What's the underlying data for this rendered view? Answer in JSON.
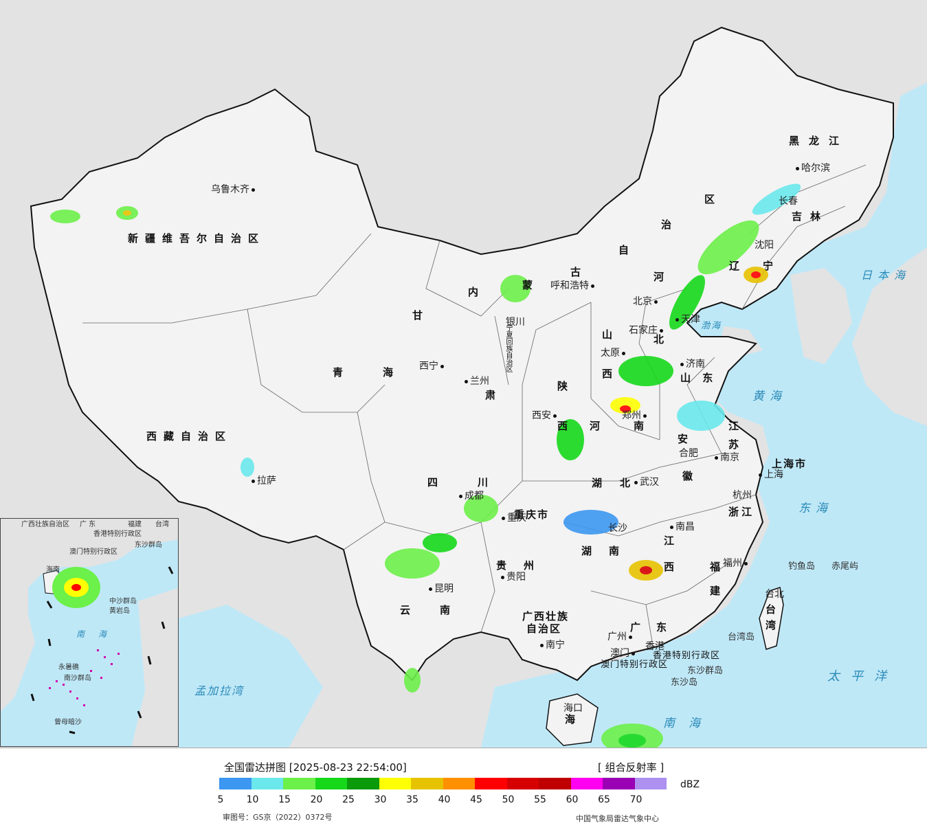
{
  "map": {
    "region_labels": [
      {
        "id": "xinjiang",
        "text": "新疆维吾尔自治区"
      },
      {
        "id": "xizang",
        "text": "西藏自治区"
      },
      {
        "id": "qinghai1",
        "text": "青"
      },
      {
        "id": "qinghai2",
        "text": "海"
      },
      {
        "id": "gansu",
        "text": "甘"
      },
      {
        "id": "sichuan1",
        "text": "四"
      },
      {
        "id": "sichuan2",
        "text": "川"
      },
      {
        "id": "yunnan1",
        "text": "云"
      },
      {
        "id": "yunnan2",
        "text": "南"
      },
      {
        "id": "guizhou1",
        "text": "贵"
      },
      {
        "id": "guizhou2",
        "text": "州"
      },
      {
        "id": "guangxi",
        "text": "广西壮族"
      },
      {
        "id": "guangxi2",
        "text": "自治区"
      },
      {
        "id": "guangdong1",
        "text": "广"
      },
      {
        "id": "guangdong2",
        "text": "东"
      },
      {
        "id": "hunan1",
        "text": "湖"
      },
      {
        "id": "hunan2",
        "text": "南"
      },
      {
        "id": "hubei1",
        "text": "湖"
      },
      {
        "id": "hubei2",
        "text": "北"
      },
      {
        "id": "henan1",
        "text": "河"
      },
      {
        "id": "henan2",
        "text": "南"
      },
      {
        "id": "shaanxi1",
        "text": "陕"
      },
      {
        "id": "shaanxi2",
        "text": "西"
      },
      {
        "id": "shanxi1",
        "text": "山"
      },
      {
        "id": "shanxi2",
        "text": "西"
      },
      {
        "id": "shandong",
        "text": "山 东"
      },
      {
        "id": "jiangsu1",
        "text": "江"
      },
      {
        "id": "jiangsu2",
        "text": "苏"
      },
      {
        "id": "anhui1",
        "text": "安"
      },
      {
        "id": "anhui2",
        "text": "徽"
      },
      {
        "id": "zhejiang",
        "text": "浙江"
      },
      {
        "id": "jiangxi1",
        "text": "江"
      },
      {
        "id": "jiangxi2",
        "text": "西"
      },
      {
        "id": "fujian1",
        "text": "福"
      },
      {
        "id": "fujian2",
        "text": "建"
      },
      {
        "id": "hebei1",
        "text": "河"
      },
      {
        "id": "hebei2",
        "text": "北"
      },
      {
        "id": "neimeng1",
        "text": "内"
      },
      {
        "id": "neimeng2",
        "text": "蒙"
      },
      {
        "id": "neimeng3",
        "text": "古"
      },
      {
        "id": "neimeng4",
        "text": "自"
      },
      {
        "id": "neimeng5",
        "text": "治"
      },
      {
        "id": "neimeng6",
        "text": "区"
      },
      {
        "id": "heilongjiang",
        "text": "黑龙江"
      },
      {
        "id": "jilin",
        "text": "吉林"
      },
      {
        "id": "liaoning1",
        "text": "辽"
      },
      {
        "id": "liaoning2",
        "text": "宁"
      },
      {
        "id": "chongqing",
        "text": "重庆市"
      },
      {
        "id": "shanghai",
        "text": "上海市"
      },
      {
        "id": "taiwan1",
        "text": "台"
      },
      {
        "id": "taiwan2",
        "text": "湾"
      },
      {
        "id": "ningxia",
        "text": "宁夏回族自治区"
      },
      {
        "id": "gansu2",
        "text": "肃"
      },
      {
        "id": "hk",
        "text": "香港特别行政区"
      },
      {
        "id": "macau",
        "text": "澳门特别行政区"
      },
      {
        "id": "hainan",
        "text": "海"
      }
    ],
    "cities": [
      {
        "id": "urumqi",
        "text": "乌鲁木齐"
      },
      {
        "id": "lhasa",
        "text": "拉萨"
      },
      {
        "id": "xining",
        "text": "西宁"
      },
      {
        "id": "lanzhou",
        "text": "兰州"
      },
      {
        "id": "yinchuan",
        "text": "银川"
      },
      {
        "id": "hohhot",
        "text": "呼和浩特"
      },
      {
        "id": "beijing",
        "text": "北京"
      },
      {
        "id": "tianjin",
        "text": "天津"
      },
      {
        "id": "shijiazhuang",
        "text": "石家庄"
      },
      {
        "id": "taiyuan",
        "text": "太原"
      },
      {
        "id": "jinan",
        "text": "济南"
      },
      {
        "id": "xian",
        "text": "西安"
      },
      {
        "id": "zhengzhou",
        "text": "郑州"
      },
      {
        "id": "hefei",
        "text": "合肥"
      },
      {
        "id": "nanjing",
        "text": "南京"
      },
      {
        "id": "shanghaic",
        "text": "上海"
      },
      {
        "id": "hangzhou",
        "text": "杭州"
      },
      {
        "id": "wuhan",
        "text": "武汉"
      },
      {
        "id": "chengdu",
        "text": "成都"
      },
      {
        "id": "chongqingc",
        "text": "重庆"
      },
      {
        "id": "changsha",
        "text": "长沙"
      },
      {
        "id": "nanchang",
        "text": "南昌"
      },
      {
        "id": "fuzhou",
        "text": "福州"
      },
      {
        "id": "taipei",
        "text": "台北"
      },
      {
        "id": "guiyang",
        "text": "贵阳"
      },
      {
        "id": "kunming",
        "text": "昆明"
      },
      {
        "id": "nanning",
        "text": "南宁"
      },
      {
        "id": "guangzhou",
        "text": "广州"
      },
      {
        "id": "hongkong",
        "text": "香港"
      },
      {
        "id": "macauc",
        "text": "澳门"
      },
      {
        "id": "haikou",
        "text": "海口"
      },
      {
        "id": "harbin",
        "text": "哈尔滨"
      },
      {
        "id": "changchun",
        "text": "长春"
      },
      {
        "id": "shenyang",
        "text": "沈阳"
      }
    ],
    "seas": [
      {
        "id": "japan_sea",
        "text": "日本海"
      },
      {
        "id": "yellow_sea",
        "text": "黄海"
      },
      {
        "id": "east_sea",
        "text": "东海"
      },
      {
        "id": "pacific",
        "text": "太平洋"
      },
      {
        "id": "south_sea",
        "text": "南海"
      },
      {
        "id": "bohai",
        "text": "渤海"
      },
      {
        "id": "bengal",
        "text": "孟加拉湾"
      }
    ],
    "islands": [
      {
        "id": "diaoyu",
        "text": "钓鱼岛"
      },
      {
        "id": "chiwei",
        "text": "赤尾屿"
      },
      {
        "id": "taiwan_island",
        "text": "台湾岛"
      },
      {
        "id": "dongsha_islands",
        "text": "东沙群岛"
      },
      {
        "id": "dongsha_island",
        "text": "东沙岛"
      }
    ],
    "inset": {
      "labels": [
        {
          "id": "i_guangxi",
          "text": "广西壮族自治区"
        },
        {
          "id": "i_guangdong",
          "text": "广 东"
        },
        {
          "id": "i_fujian",
          "text": "福建"
        },
        {
          "id": "i_taiwan",
          "text": "台湾"
        },
        {
          "id": "i_hk",
          "text": "香港特别行政区"
        },
        {
          "id": "i_macau",
          "text": "澳门特别行政区"
        },
        {
          "id": "i_dongsha",
          "text": "东沙群岛"
        },
        {
          "id": "i_hainan",
          "text": "海南"
        },
        {
          "id": "i_zhongsha",
          "text": "中沙群岛"
        },
        {
          "id": "i_huangyan",
          "text": "黄岩岛"
        },
        {
          "id": "i_south_sea",
          "text": "南 海"
        },
        {
          "id": "i_yongshu",
          "text": "永暑礁"
        },
        {
          "id": "i_nansha",
          "text": "南沙群岛"
        },
        {
          "id": "i_zengmu",
          "text": "曾母暗沙"
        }
      ]
    }
  },
  "legend": {
    "title": "全国雷达拼图 [2025-08-23 22:54:00]",
    "product": "[ 组合反射率 ]",
    "unit": "dBZ",
    "colors": [
      "#3b97f0",
      "#6ae8ec",
      "#6cf04a",
      "#16d81a",
      "#0a9a0a",
      "#fefe04",
      "#e7c200",
      "#ff9000",
      "#ff0000",
      "#d60000",
      "#c00000",
      "#ff00f0",
      "#9a00b4",
      "#ad90f0"
    ],
    "ticks": [
      "5",
      "10",
      "15",
      "20",
      "25",
      "30",
      "35",
      "40",
      "45",
      "50",
      "55",
      "60",
      "65",
      "70"
    ],
    "approval": "审图号：GS京（2022）0372号",
    "source": "中国气象局雷达气象中心"
  }
}
